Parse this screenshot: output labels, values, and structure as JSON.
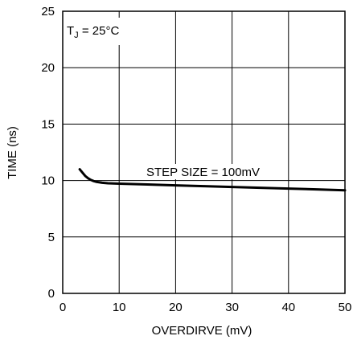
{
  "chart_data": {
    "type": "line",
    "xlabel": "OVERDIRVE (mV)",
    "ylabel": "TIME (ns)",
    "xlim": [
      0,
      50
    ],
    "ylim": [
      0,
      25
    ],
    "xticks": [
      0,
      10,
      20,
      30,
      40,
      50
    ],
    "yticks": [
      0,
      5,
      10,
      15,
      20,
      25
    ],
    "grid": true,
    "annotations": {
      "condition_main": "T",
      "condition_sub": "J",
      "condition_rest": " = 25°C",
      "curve_label": "STEP SIZE = 100mV"
    },
    "series": [
      {
        "name": "STEP SIZE = 100mV",
        "x": [
          3,
          3.5,
          4,
          4.5,
          5,
          5.5,
          6,
          7,
          8,
          10,
          15,
          20,
          25,
          30,
          35,
          40,
          45,
          50
        ],
        "y": [
          11.0,
          10.7,
          10.4,
          10.2,
          10.05,
          9.95,
          9.88,
          9.8,
          9.76,
          9.72,
          9.65,
          9.57,
          9.5,
          9.43,
          9.36,
          9.29,
          9.22,
          9.14
        ]
      }
    ]
  }
}
